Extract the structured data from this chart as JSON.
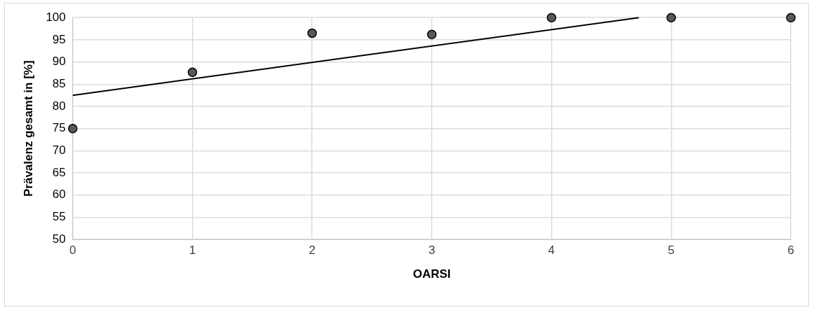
{
  "chart_data": {
    "type": "scatter",
    "xlabel": "OARSI",
    "ylabel": "Prävalenz gesamt in [%]",
    "x": [
      0,
      1,
      2,
      3,
      4,
      5,
      6
    ],
    "series": [
      {
        "type": "scatter",
        "color": "#595959",
        "values": [
          75,
          87.7,
          96.5,
          96.2,
          100,
          100,
          100
        ]
      },
      {
        "type": "line",
        "color": "#000000",
        "x": [
          0,
          4.73
        ],
        "values": [
          82.5,
          100
        ],
        "marker": "none"
      }
    ],
    "xlim": [
      0,
      6
    ],
    "xticks": [
      0,
      1,
      2,
      3,
      4,
      5,
      6
    ],
    "ylim": [
      50,
      100
    ],
    "yticks": [
      50,
      55,
      60,
      65,
      70,
      75,
      80,
      85,
      90,
      95,
      100
    ],
    "grid": true,
    "legend": false,
    "marker": "circle"
  }
}
